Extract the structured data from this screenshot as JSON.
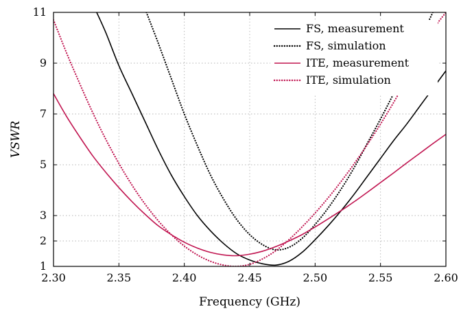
{
  "chart_data": {
    "type": "line",
    "title": "",
    "xlabel": "Frequency (GHz)",
    "ylabel": "VSWR",
    "xlim": [
      2.3,
      2.6
    ],
    "ylim": [
      1,
      11
    ],
    "x_ticks": [
      "2.30",
      "2.35",
      "2.40",
      "2.45",
      "2.50",
      "2.55",
      "2.60"
    ],
    "y_ticks": [
      "1",
      "2",
      "3",
      "5",
      "7",
      "9",
      "11"
    ],
    "grid": true,
    "legend_position": "top-right",
    "series": [
      {
        "name": "FS, measurement",
        "color": "#000000",
        "style": "solid",
        "points": [
          [
            2.333,
            11.0
          ],
          [
            2.34,
            10.2
          ],
          [
            2.35,
            8.9
          ],
          [
            2.36,
            7.8
          ],
          [
            2.37,
            6.7
          ],
          [
            2.38,
            5.6
          ],
          [
            2.39,
            4.6
          ],
          [
            2.4,
            3.75
          ],
          [
            2.41,
            3.0
          ],
          [
            2.42,
            2.4
          ],
          [
            2.43,
            1.9
          ],
          [
            2.44,
            1.5
          ],
          [
            2.45,
            1.25
          ],
          [
            2.46,
            1.1
          ],
          [
            2.47,
            1.05
          ],
          [
            2.48,
            1.2
          ],
          [
            2.49,
            1.55
          ],
          [
            2.5,
            2.05
          ],
          [
            2.51,
            2.6
          ],
          [
            2.52,
            3.2
          ],
          [
            2.53,
            3.85
          ],
          [
            2.54,
            4.55
          ],
          [
            2.55,
            5.25
          ],
          [
            2.56,
            5.95
          ],
          [
            2.57,
            6.6
          ],
          [
            2.58,
            7.3
          ],
          [
            2.59,
            8.0
          ],
          [
            2.6,
            8.7
          ]
        ]
      },
      {
        "name": "FS, simulation",
        "color": "#000000",
        "style": "dotted",
        "points": [
          [
            2.371,
            11.0
          ],
          [
            2.38,
            9.8
          ],
          [
            2.39,
            8.4
          ],
          [
            2.4,
            7.0
          ],
          [
            2.41,
            5.75
          ],
          [
            2.42,
            4.6
          ],
          [
            2.43,
            3.65
          ],
          [
            2.44,
            2.85
          ],
          [
            2.45,
            2.25
          ],
          [
            2.46,
            1.85
          ],
          [
            2.47,
            1.65
          ],
          [
            2.48,
            1.75
          ],
          [
            2.49,
            2.1
          ],
          [
            2.5,
            2.65
          ],
          [
            2.51,
            3.3
          ],
          [
            2.52,
            4.05
          ],
          [
            2.53,
            4.9
          ],
          [
            2.54,
            5.85
          ],
          [
            2.55,
            6.8
          ],
          [
            2.56,
            7.8
          ],
          [
            2.57,
            8.85
          ],
          [
            2.58,
            9.9
          ],
          [
            2.59,
            11.0
          ]
        ]
      },
      {
        "name": "ITE, measurement",
        "color": "#c0134f",
        "style": "solid",
        "points": [
          [
            2.3,
            7.8
          ],
          [
            2.31,
            6.9
          ],
          [
            2.32,
            6.1
          ],
          [
            2.33,
            5.35
          ],
          [
            2.34,
            4.7
          ],
          [
            2.35,
            4.1
          ],
          [
            2.36,
            3.55
          ],
          [
            2.37,
            3.05
          ],
          [
            2.38,
            2.6
          ],
          [
            2.39,
            2.25
          ],
          [
            2.4,
            1.95
          ],
          [
            2.41,
            1.72
          ],
          [
            2.42,
            1.55
          ],
          [
            2.43,
            1.45
          ],
          [
            2.44,
            1.42
          ],
          [
            2.45,
            1.48
          ],
          [
            2.46,
            1.6
          ],
          [
            2.47,
            1.78
          ],
          [
            2.48,
            2.0
          ],
          [
            2.49,
            2.25
          ],
          [
            2.5,
            2.55
          ],
          [
            2.51,
            2.87
          ],
          [
            2.52,
            3.2
          ],
          [
            2.53,
            3.55
          ],
          [
            2.54,
            3.92
          ],
          [
            2.55,
            4.3
          ],
          [
            2.56,
            4.68
          ],
          [
            2.57,
            5.07
          ],
          [
            2.58,
            5.45
          ],
          [
            2.59,
            5.83
          ],
          [
            2.6,
            6.2
          ]
        ]
      },
      {
        "name": "ITE, simulation",
        "color": "#c0134f",
        "style": "dotted",
        "points": [
          [
            2.3,
            10.7
          ],
          [
            2.31,
            9.4
          ],
          [
            2.32,
            8.2
          ],
          [
            2.33,
            7.05
          ],
          [
            2.34,
            6.0
          ],
          [
            2.35,
            5.05
          ],
          [
            2.36,
            4.2
          ],
          [
            2.37,
            3.45
          ],
          [
            2.38,
            2.8
          ],
          [
            2.39,
            2.25
          ],
          [
            2.4,
            1.8
          ],
          [
            2.41,
            1.45
          ],
          [
            2.42,
            1.2
          ],
          [
            2.43,
            1.05
          ],
          [
            2.44,
            1.0
          ],
          [
            2.45,
            1.08
          ],
          [
            2.46,
            1.3
          ],
          [
            2.47,
            1.62
          ],
          [
            2.48,
            2.05
          ],
          [
            2.49,
            2.55
          ],
          [
            2.5,
            3.1
          ],
          [
            2.51,
            3.7
          ],
          [
            2.52,
            4.35
          ],
          [
            2.53,
            5.05
          ],
          [
            2.54,
            5.8
          ],
          [
            2.55,
            6.6
          ],
          [
            2.56,
            7.45
          ],
          [
            2.57,
            8.35
          ],
          [
            2.58,
            9.3
          ],
          [
            2.59,
            10.3
          ],
          [
            2.6,
            11.0
          ]
        ]
      }
    ]
  }
}
